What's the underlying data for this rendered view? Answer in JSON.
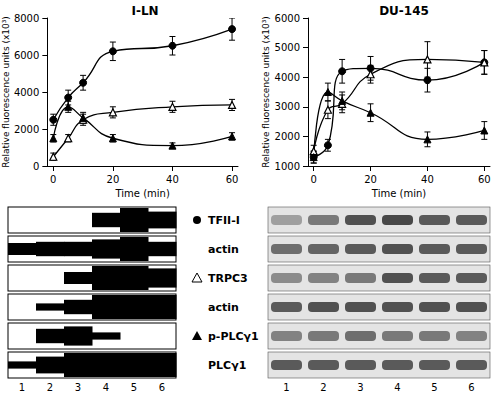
{
  "chart_data": [
    {
      "type": "line",
      "title": "I-LN",
      "xlabel": "Time (min)",
      "ylabel": "Relative fluorescence units (x10³)",
      "x": [
        0,
        5,
        10,
        20,
        40,
        60
      ],
      "xlim": [
        -2,
        62
      ],
      "xticks": [
        0,
        20,
        40,
        60
      ],
      "ylim": [
        0,
        8000
      ],
      "yticks": [
        0,
        2000,
        4000,
        6000,
        8000
      ],
      "grid": false,
      "series": [
        {
          "marker": "circle",
          "color": "#000000",
          "values": [
            2500,
            3700,
            4500,
            6200,
            6500,
            7400
          ],
          "errors": [
            300,
            400,
            400,
            500,
            500,
            600
          ]
        },
        {
          "marker": "triangle-open",
          "color": "#000000",
          "values": [
            500,
            1500,
            2500,
            2900,
            3200,
            3300
          ],
          "errors": [
            200,
            200,
            300,
            300,
            300,
            300
          ]
        },
        {
          "marker": "triangle",
          "color": "#000000",
          "values": [
            1500,
            3200,
            2600,
            1500,
            1100,
            1600
          ],
          "errors": [
            200,
            300,
            300,
            200,
            150,
            200
          ]
        }
      ]
    },
    {
      "type": "line",
      "title": "DU-145",
      "xlabel": "Time (min)",
      "ylabel": "Relative fluorescence units (x10³)",
      "x": [
        0,
        5,
        10,
        20,
        40,
        60
      ],
      "xlim": [
        -2,
        62
      ],
      "xticks": [
        0,
        20,
        40,
        60
      ],
      "ylim": [
        1000,
        6000
      ],
      "yticks": [
        1000,
        2000,
        3000,
        4000,
        5000,
        6000
      ],
      "grid": false,
      "series": [
        {
          "marker": "circle",
          "color": "#000000",
          "values": [
            1300,
            1700,
            4200,
            4300,
            3900,
            4500
          ],
          "errors": [
            200,
            200,
            400,
            400,
            400,
            400
          ]
        },
        {
          "marker": "triangle-open",
          "color": "#000000",
          "values": [
            1500,
            2900,
            3100,
            4100,
            4600,
            4500
          ],
          "errors": [
            200,
            300,
            300,
            300,
            600,
            400
          ]
        },
        {
          "marker": "triangle",
          "color": "#000000",
          "values": [
            1300,
            3500,
            3200,
            2800,
            1900,
            2200
          ],
          "errors": [
            200,
            300,
            300,
            300,
            250,
            300
          ]
        }
      ]
    }
  ],
  "blots": {
    "rows": [
      {
        "label": "TFII-I",
        "marker": "circle"
      },
      {
        "label": "actin"
      },
      {
        "label": "TRPC3",
        "marker": "triangle-open"
      },
      {
        "label": "actin"
      },
      {
        "label": "p-PLCγ1",
        "marker": "triangle"
      },
      {
        "label": "PLCγ1"
      }
    ],
    "lanes": [
      1,
      2,
      3,
      4,
      5,
      6
    ]
  }
}
